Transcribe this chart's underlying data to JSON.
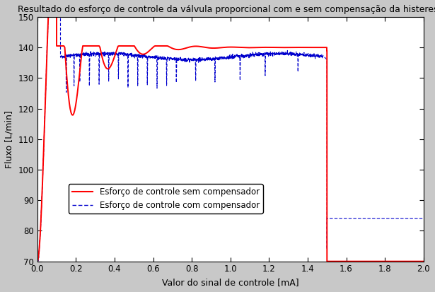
{
  "title": "Resultado do esforço de controle da válvula proporcional com e sem compensação da histerese",
  "xlabel": "Valor do sinal de controle [mA]",
  "ylabel": "Fluxo [L/min]",
  "xlim": [
    0,
    2
  ],
  "ylim": [
    70,
    150
  ],
  "yticks": [
    70,
    80,
    90,
    100,
    110,
    120,
    130,
    140,
    150
  ],
  "xticks": [
    0,
    0.2,
    0.4,
    0.6,
    0.8,
    1.0,
    1.2,
    1.4,
    1.6,
    1.8,
    2.0
  ],
  "bg_color": "#c8c8c8",
  "plot_bg_color": "#ffffff",
  "legend_labels": [
    "Esforço de controle sem compensador",
    "Esforço de controle com compensador"
  ],
  "red_color": "#ff0000",
  "blue_color": "#0000cd",
  "title_fontsize": 9.0,
  "axis_fontsize": 9,
  "tick_fontsize": 8.5,
  "legend_fontsize": 8.5
}
